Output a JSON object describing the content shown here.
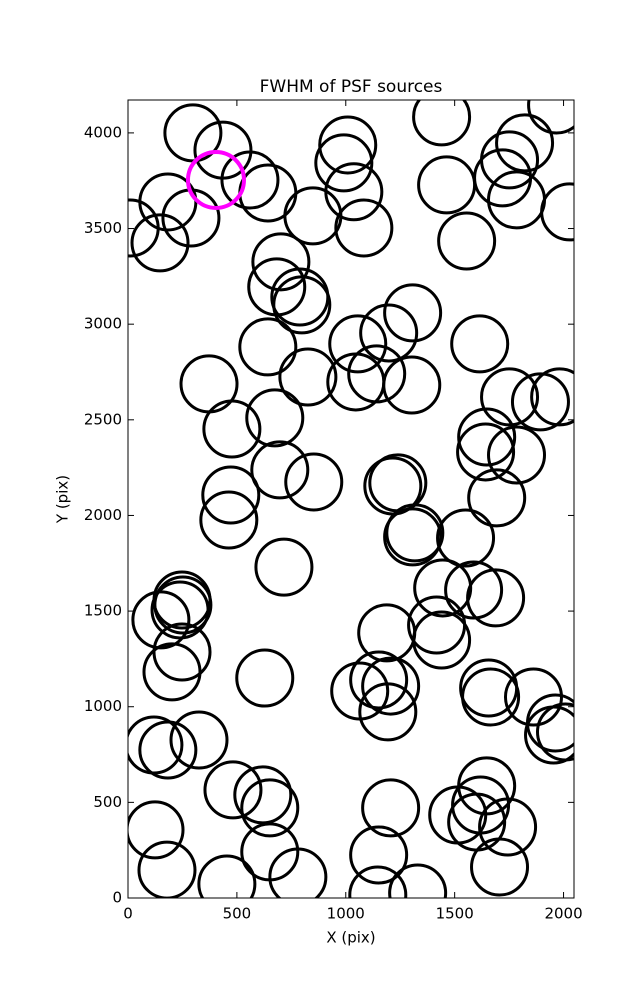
{
  "chart_data": {
    "type": "scatter",
    "title": "FWHM of PSF sources",
    "x_label": "X (pix)",
    "y_label": "Y (pix)",
    "xlim": [
      0,
      2048
    ],
    "ylim": [
      0,
      4172
    ],
    "xticks": [
      0,
      500,
      1000,
      1500,
      2000
    ],
    "yticks": [
      0,
      500,
      1000,
      1500,
      2000,
      2500,
      3000,
      3500,
      4000
    ],
    "series": [
      {
        "color": "#000000",
        "x": [
          298,
          436,
          183,
          289,
          10,
          147,
          560,
          642,
          1009,
          991,
          1037,
          1083,
          849,
          1440,
          1463,
          1555,
          1821,
          1752,
          1720,
          1784,
          1968,
          2028,
          702,
          683,
          789,
          798,
          642,
          826,
          372,
          674,
          477,
          1055,
          1197,
          1307,
          1046,
          1142,
          1303,
          1615,
          1752,
          1894,
          1982,
          1647,
          1642,
          1784,
          1693,
          697,
          853,
          472,
          463,
          1239,
          1216,
          1317,
          1307,
          1550,
          716,
          248,
          252,
          239,
          151,
          248,
          202,
          628,
          1445,
          1587,
          1688,
          1417,
          1440,
          1188,
          1151,
          1064,
          1206,
          1193,
          1665,
          1656,
          1862,
          1963,
          1954,
          2009,
          119,
          183,
          326,
          482,
          619,
          651,
          651,
          124,
          179,
          454,
          780,
          1151,
          1147,
          1330,
          1206,
          1514,
          1647,
          1619,
          1601,
          1743,
          1706
        ],
        "y": [
          4000,
          3910,
          3639,
          3555,
          3503,
          3425,
          3754,
          3686,
          3937,
          3843,
          3692,
          3503,
          3566,
          4084,
          3728,
          3435,
          3948,
          3859,
          3765,
          3650,
          4146,
          3587,
          3326,
          3195,
          3142,
          3101,
          2881,
          2724,
          2688,
          2510,
          2452,
          2897,
          2954,
          3059,
          2698,
          2740,
          2682,
          2897,
          2620,
          2594,
          2620,
          2410,
          2332,
          2316,
          2092,
          2238,
          2175,
          2107,
          1976,
          2170,
          2154,
          1909,
          1888,
          1882,
          1730,
          1558,
          1532,
          1506,
          1454,
          1286,
          1182,
          1150,
          1621,
          1610,
          1569,
          1427,
          1349,
          1386,
          1140,
          1082,
          1108,
          973,
          1051,
          1098,
          1051,
          915,
          852,
          868,
          800,
          774,
          826,
          565,
          539,
          471,
          241,
          356,
          146,
          73,
          110,
          225,
          16,
          26,
          471,
          434,
          586,
          486,
          397,
          371,
          162
        ]
      },
      {
        "color": "#ff00ff",
        "x": [
          404
        ],
        "y": [
          3754
        ]
      }
    ]
  }
}
